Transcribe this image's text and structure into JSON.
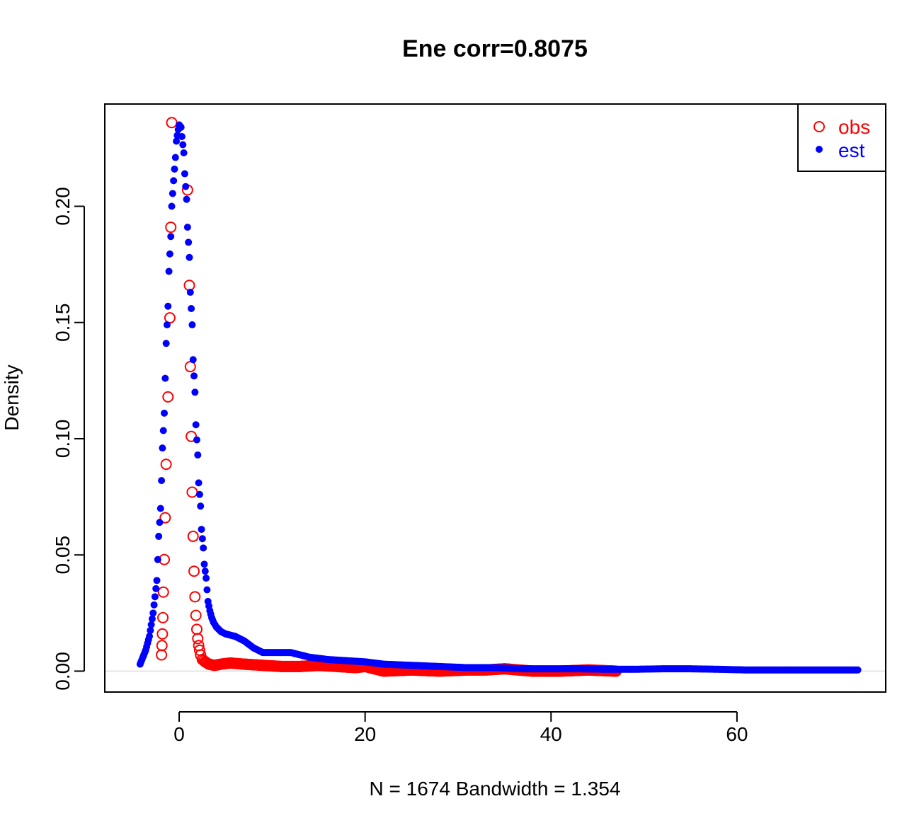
{
  "chart_data": {
    "type": "scatter",
    "title": "Ene corr=0.8075",
    "xlabel": "N = 1674   Bandwidth = 1.354",
    "ylabel": "Density",
    "xlim": [
      -8,
      76
    ],
    "ylim": [
      -0.009,
      0.244
    ],
    "xticks": [
      0,
      20,
      40,
      60
    ],
    "xtick_labels": [
      "0",
      "20",
      "40",
      "60"
    ],
    "yticks": [
      0.0,
      0.05,
      0.1,
      0.15,
      0.2
    ],
    "ytick_labels": [
      "0.00",
      "0.05",
      "0.10",
      "0.15",
      "0.20"
    ],
    "grid": false,
    "baseline": 0,
    "legend_position": "top-right",
    "series": [
      {
        "name": "obs",
        "marker": "open-circle",
        "color": "#ff0000",
        "points": [
          [
            -1.9,
            0.007
          ],
          [
            -1.85,
            0.011
          ],
          [
            -1.8,
            0.016
          ],
          [
            -1.75,
            0.023
          ],
          [
            -1.7,
            0.034
          ],
          [
            -1.6,
            0.048
          ],
          [
            -1.5,
            0.066
          ],
          [
            -1.4,
            0.089
          ],
          [
            -1.2,
            0.118
          ],
          [
            -1.0,
            0.152
          ],
          [
            -0.9,
            0.191
          ],
          [
            -0.8,
            0.236
          ],
          [
            0.9,
            0.207
          ],
          [
            1.1,
            0.166
          ],
          [
            1.2,
            0.131
          ],
          [
            1.3,
            0.101
          ],
          [
            1.4,
            0.077
          ],
          [
            1.5,
            0.058
          ],
          [
            1.6,
            0.043
          ],
          [
            1.7,
            0.032
          ],
          [
            1.8,
            0.024
          ],
          [
            1.9,
            0.018
          ],
          [
            2.0,
            0.014
          ],
          [
            2.1,
            0.011
          ],
          [
            2.2,
            0.009
          ],
          [
            2.3,
            0.007
          ],
          [
            2.5,
            0.005
          ],
          [
            2.8,
            0.004
          ],
          [
            3.2,
            0.003
          ],
          [
            3.8,
            0.0025
          ],
          [
            4.5,
            0.003
          ],
          [
            5.5,
            0.0035
          ],
          [
            7.0,
            0.003
          ],
          [
            9.0,
            0.0025
          ],
          [
            11.0,
            0.002
          ],
          [
            13.0,
            0.002
          ],
          [
            15.0,
            0.0025
          ],
          [
            17.0,
            0.002
          ],
          [
            19.0,
            0.0015
          ],
          [
            20.0,
            0.002
          ],
          [
            22.0,
            0.0
          ],
          [
            25.0,
            0.0005
          ],
          [
            28.0,
            0.0
          ],
          [
            31.0,
            0.0005
          ],
          [
            33.0,
            0.0005
          ],
          [
            35.0,
            0.001
          ],
          [
            38.0,
            0.0
          ],
          [
            41.0,
            0.0
          ],
          [
            44.0,
            0.0005
          ],
          [
            47.0,
            0.0
          ]
        ]
      },
      {
        "name": "est",
        "marker": "filled-circle",
        "color": "#0000ff",
        "points": [
          [
            -4.2,
            0.003
          ],
          [
            -4.0,
            0.005
          ],
          [
            -3.8,
            0.007
          ],
          [
            -3.6,
            0.009
          ],
          [
            -3.4,
            0.012
          ],
          [
            -3.2,
            0.015
          ],
          [
            -3.0,
            0.02
          ],
          [
            -2.8,
            0.025
          ],
          [
            -2.6,
            0.032
          ],
          [
            -2.4,
            0.039
          ],
          [
            -2.3,
            0.048
          ],
          [
            -2.2,
            0.058
          ],
          [
            -2.0,
            0.07
          ],
          [
            -1.9,
            0.082
          ],
          [
            -1.8,
            0.096
          ],
          [
            -1.6,
            0.111
          ],
          [
            -1.5,
            0.126
          ],
          [
            -1.4,
            0.141
          ],
          [
            -1.2,
            0.157
          ],
          [
            -1.1,
            0.172
          ],
          [
            -0.9,
            0.187
          ],
          [
            -0.8,
            0.2
          ],
          [
            -0.6,
            0.211
          ],
          [
            -0.4,
            0.221
          ],
          [
            -0.3,
            0.228
          ],
          [
            -0.1,
            0.233
          ],
          [
            0.0,
            0.235
          ],
          [
            0.2,
            0.234
          ],
          [
            0.3,
            0.23
          ],
          [
            0.5,
            0.223
          ],
          [
            0.6,
            0.214
          ],
          [
            0.8,
            0.203
          ],
          [
            0.9,
            0.191
          ],
          [
            1.1,
            0.178
          ],
          [
            1.2,
            0.163
          ],
          [
            1.4,
            0.149
          ],
          [
            1.5,
            0.134
          ],
          [
            1.7,
            0.12
          ],
          [
            1.8,
            0.106
          ],
          [
            2.0,
            0.093
          ],
          [
            2.1,
            0.081
          ],
          [
            2.3,
            0.071
          ],
          [
            2.4,
            0.061
          ],
          [
            2.6,
            0.053
          ],
          [
            2.7,
            0.046
          ],
          [
            2.9,
            0.04
          ],
          [
            3.0,
            0.035
          ],
          [
            3.1,
            0.03
          ],
          [
            3.3,
            0.026
          ],
          [
            3.5,
            0.023
          ],
          [
            3.7,
            0.021
          ],
          [
            4.0,
            0.019
          ],
          [
            4.5,
            0.017
          ],
          [
            5.0,
            0.016
          ],
          [
            6.0,
            0.015
          ],
          [
            7.0,
            0.013
          ],
          [
            8.0,
            0.01
          ],
          [
            9.0,
            0.008
          ],
          [
            10.0,
            0.008
          ],
          [
            12.0,
            0.008
          ],
          [
            14.0,
            0.006
          ],
          [
            16.0,
            0.005
          ],
          [
            18.0,
            0.0045
          ],
          [
            20.0,
            0.004
          ],
          [
            22.0,
            0.003
          ],
          [
            25.0,
            0.0025
          ],
          [
            28.0,
            0.002
          ],
          [
            31.0,
            0.0015
          ],
          [
            34.0,
            0.0015
          ],
          [
            37.0,
            0.001
          ],
          [
            40.0,
            0.001
          ],
          [
            43.0,
            0.001
          ],
          [
            46.0,
            0.0008
          ],
          [
            49.0,
            0.0008
          ],
          [
            52.0,
            0.001
          ],
          [
            55.0,
            0.001
          ],
          [
            58.0,
            0.0008
          ],
          [
            61.0,
            0.0005
          ],
          [
            64.0,
            0.0005
          ],
          [
            67.0,
            0.0005
          ],
          [
            70.0,
            0.0005
          ],
          [
            73.0,
            0.0005
          ]
        ]
      }
    ]
  }
}
